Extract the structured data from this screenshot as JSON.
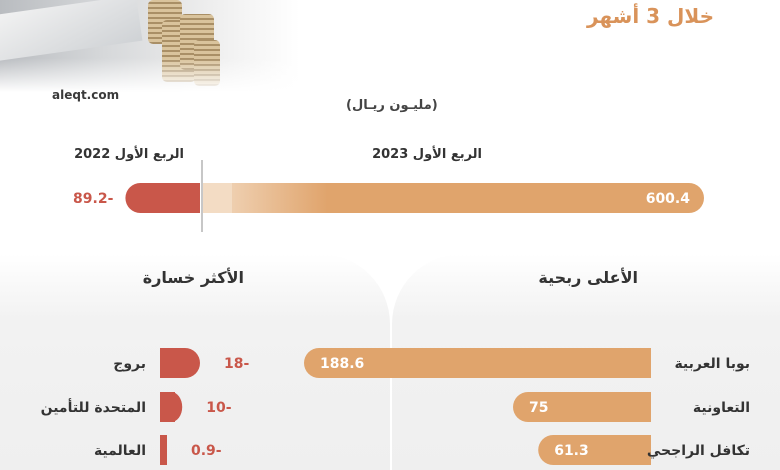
{
  "headline": "خلال 3 أشهر",
  "source": "aleqt.com",
  "units": "(مليـون ريـال)",
  "colors": {
    "accent_orange": "#e0a46c",
    "accent_light": "#f3dcc4",
    "loss_red": "#c9574a",
    "label_text": "#333333",
    "value_red": "#c9574a",
    "value_white": "#ffffff"
  },
  "chart_data": [
    {
      "type": "bar",
      "title": "",
      "series": [
        {
          "name": "الربع الأول 2023",
          "values": [
            600.4
          ],
          "labels": [
            "600.4"
          ]
        },
        {
          "name": "الربع الأول 2022",
          "values": [
            -89.2
          ],
          "labels": [
            "89.2-"
          ]
        }
      ],
      "ylabel": "(مليـون ريـال)"
    },
    {
      "type": "bar",
      "title": "الأعلى ربحية",
      "categories": [
        "بوبا العربية",
        "التعاونية",
        "تكافل الراجحي"
      ],
      "values": [
        188.6,
        75,
        61.3
      ],
      "labels": [
        "188.6",
        "75",
        "61.3"
      ]
    },
    {
      "type": "bar",
      "title": "الأكثر خسارة",
      "categories": [
        "بروج",
        "المتحدة للتأمين",
        "العالمية"
      ],
      "values": [
        -18,
        -10,
        -0.9
      ],
      "labels": [
        "18-",
        "10-",
        "0.9-"
      ]
    }
  ]
}
